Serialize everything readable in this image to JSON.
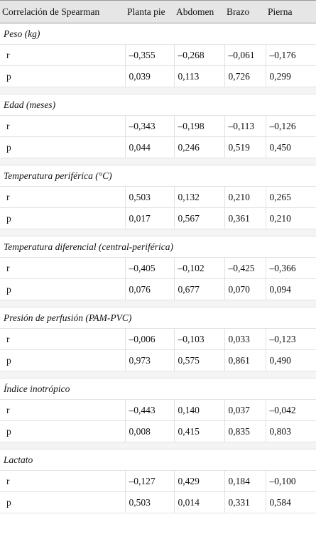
{
  "table": {
    "headers": [
      "Correlación de Spearman",
      "Planta pie",
      "Abdomen",
      "Brazo",
      "Pierna"
    ],
    "sections": [
      {
        "title": "Peso (kg)",
        "rows": [
          {
            "label": "r",
            "values": [
              "–0,355",
              "–0,268",
              "–0,061",
              "–0,176"
            ]
          },
          {
            "label": "p",
            "values": [
              "0,039",
              "0,113",
              "0,726",
              "0,299"
            ]
          }
        ]
      },
      {
        "title": "Edad (meses)",
        "rows": [
          {
            "label": "r",
            "values": [
              "–0,343",
              "–0,198",
              "–0,113",
              "–0,126"
            ]
          },
          {
            "label": "p",
            "values": [
              "0,044",
              "0,246",
              "0,519",
              "0,450"
            ]
          }
        ]
      },
      {
        "title": "Temperatura periférica (°C)",
        "rows": [
          {
            "label": "r",
            "values": [
              "0,503",
              "0,132",
              "0,210",
              "0,265"
            ]
          },
          {
            "label": "p",
            "values": [
              "0,017",
              "0,567",
              "0,361",
              "0,210"
            ]
          }
        ]
      },
      {
        "title": "Temperatura diferencial (central-periférica)",
        "rows": [
          {
            "label": "r",
            "values": [
              "–0,405",
              "–0,102",
              "–0,425",
              "–0,366"
            ]
          },
          {
            "label": "p",
            "values": [
              "0,076",
              "0,677",
              "0,070",
              "0,094"
            ]
          }
        ]
      },
      {
        "title": "Presión de perfusión (PAM-PVC)",
        "rows": [
          {
            "label": "r",
            "values": [
              "–0,006",
              "–0,103",
              "0,033",
              "–0,123"
            ]
          },
          {
            "label": "p",
            "values": [
              "0,973",
              "0,575",
              "0,861",
              "0,490"
            ]
          }
        ]
      },
      {
        "title": "Índice inotrópico",
        "rows": [
          {
            "label": "r",
            "values": [
              "–0,443",
              "0,140",
              "0,037",
              "–0,042"
            ]
          },
          {
            "label": "p",
            "values": [
              "0,008",
              "0,415",
              "0,835",
              "0,803"
            ]
          }
        ]
      },
      {
        "title": "Lactato",
        "rows": [
          {
            "label": "r",
            "values": [
              "–0,127",
              "0,429",
              "0,184",
              "–0,100"
            ]
          },
          {
            "label": "p",
            "values": [
              "0,503",
              "0,014",
              "0,331",
              "0,584"
            ]
          }
        ]
      }
    ]
  }
}
